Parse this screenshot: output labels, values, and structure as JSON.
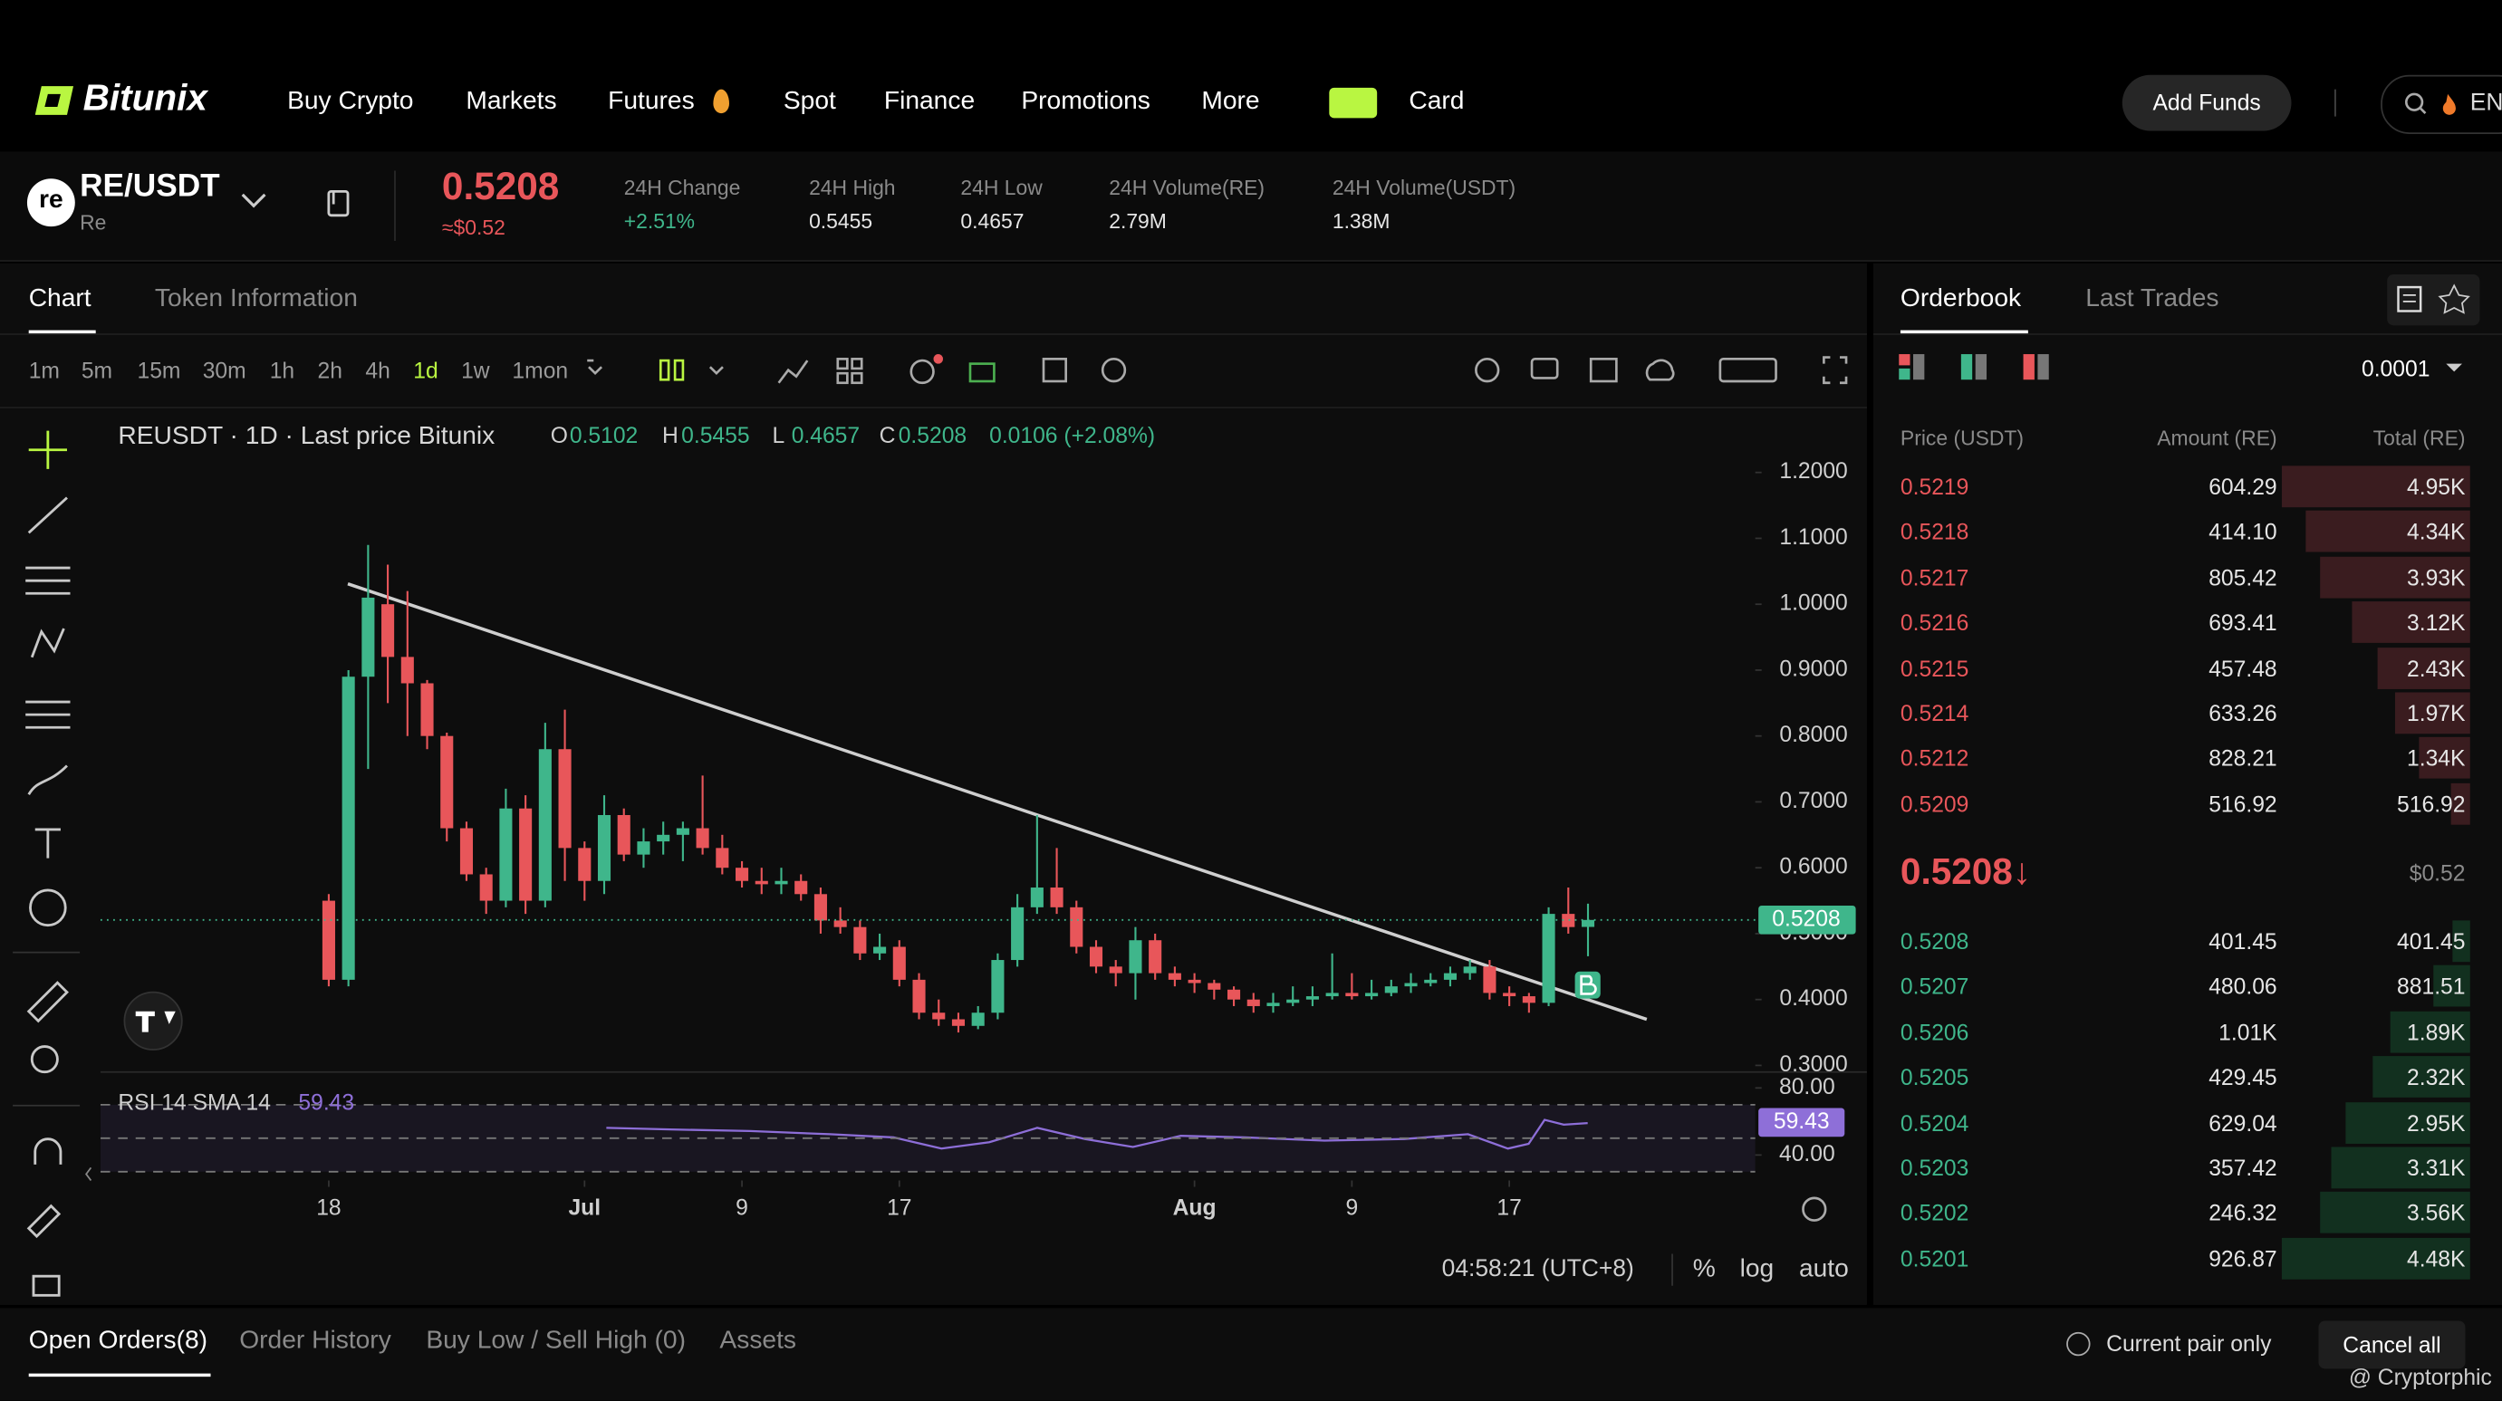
{
  "nav": {
    "brand": "Bitunix",
    "items": [
      "Buy Crypto",
      "Markets",
      "Futures",
      "Spot",
      "Finance",
      "Promotions",
      "More",
      "Card"
    ],
    "add_funds": "Add Funds",
    "lang": "EN"
  },
  "ticker": {
    "icon": "re",
    "pair": "RE/USDT",
    "name": "Re",
    "price": "0.5208",
    "price_usd": "≈$0.52",
    "stats": [
      {
        "label": "24H Change",
        "value": "+2.51%"
      },
      {
        "label": "24H High",
        "value": "0.5455"
      },
      {
        "label": "24H Low",
        "value": "0.4657"
      },
      {
        "label": "24H Volume(RE)",
        "value": "2.79M"
      },
      {
        "label": "24H Volume(USDT)",
        "value": "1.38M"
      }
    ]
  },
  "chart_tabs": [
    "Chart",
    "Token Information"
  ],
  "intervals": [
    "1m",
    "5m",
    "15m",
    "30m",
    "1h",
    "2h",
    "4h",
    "1d",
    "1w",
    "1mon"
  ],
  "active_interval": "1d",
  "chart_data": {
    "type": "candlestick",
    "title": "REUSDT · 1D · Last price Bitunix",
    "ohlc_keys": [
      "O",
      "H",
      "L",
      "C"
    ],
    "change": "0.0106 (+2.08%)",
    "up_color": "#3fb68b",
    "down_color": "#e8565a",
    "candles": [
      {
        "o": 0.55,
        "h": 0.56,
        "l": 0.42,
        "c": 0.43
      },
      {
        "o": 0.43,
        "h": 0.9,
        "l": 0.42,
        "c": 0.89
      },
      {
        "o": 0.89,
        "h": 1.09,
        "l": 0.75,
        "c": 1.01
      },
      {
        "o": 1.0,
        "h": 1.06,
        "l": 0.85,
        "c": 0.92
      },
      {
        "o": 0.92,
        "h": 1.02,
        "l": 0.8,
        "c": 0.88
      },
      {
        "o": 0.88,
        "h": 0.885,
        "l": 0.78,
        "c": 0.8
      },
      {
        "o": 0.8,
        "h": 0.805,
        "l": 0.64,
        "c": 0.66
      },
      {
        "o": 0.66,
        "h": 0.67,
        "l": 0.58,
        "c": 0.59
      },
      {
        "o": 0.59,
        "h": 0.6,
        "l": 0.53,
        "c": 0.55
      },
      {
        "o": 0.55,
        "h": 0.72,
        "l": 0.54,
        "c": 0.69
      },
      {
        "o": 0.69,
        "h": 0.71,
        "l": 0.53,
        "c": 0.55
      },
      {
        "o": 0.55,
        "h": 0.82,
        "l": 0.54,
        "c": 0.78
      },
      {
        "o": 0.78,
        "h": 0.84,
        "l": 0.58,
        "c": 0.63
      },
      {
        "o": 0.63,
        "h": 0.64,
        "l": 0.55,
        "c": 0.58
      },
      {
        "o": 0.58,
        "h": 0.71,
        "l": 0.56,
        "c": 0.68
      },
      {
        "o": 0.68,
        "h": 0.69,
        "l": 0.61,
        "c": 0.62
      },
      {
        "o": 0.62,
        "h": 0.66,
        "l": 0.6,
        "c": 0.64
      },
      {
        "o": 0.64,
        "h": 0.67,
        "l": 0.62,
        "c": 0.65
      },
      {
        "o": 0.65,
        "h": 0.67,
        "l": 0.61,
        "c": 0.66
      },
      {
        "o": 0.66,
        "h": 0.74,
        "l": 0.62,
        "c": 0.63
      },
      {
        "o": 0.63,
        "h": 0.65,
        "l": 0.59,
        "c": 0.6
      },
      {
        "o": 0.6,
        "h": 0.61,
        "l": 0.57,
        "c": 0.58
      },
      {
        "o": 0.58,
        "h": 0.6,
        "l": 0.56,
        "c": 0.575
      },
      {
        "o": 0.575,
        "h": 0.6,
        "l": 0.56,
        "c": 0.58
      },
      {
        "o": 0.58,
        "h": 0.59,
        "l": 0.55,
        "c": 0.56
      },
      {
        "o": 0.56,
        "h": 0.57,
        "l": 0.5,
        "c": 0.52
      },
      {
        "o": 0.52,
        "h": 0.54,
        "l": 0.5,
        "c": 0.51
      },
      {
        "o": 0.51,
        "h": 0.52,
        "l": 0.46,
        "c": 0.47
      },
      {
        "o": 0.47,
        "h": 0.5,
        "l": 0.46,
        "c": 0.48
      },
      {
        "o": 0.48,
        "h": 0.49,
        "l": 0.42,
        "c": 0.43
      },
      {
        "o": 0.43,
        "h": 0.44,
        "l": 0.37,
        "c": 0.38
      },
      {
        "o": 0.38,
        "h": 0.4,
        "l": 0.36,
        "c": 0.37
      },
      {
        "o": 0.37,
        "h": 0.38,
        "l": 0.35,
        "c": 0.36
      },
      {
        "o": 0.36,
        "h": 0.39,
        "l": 0.355,
        "c": 0.38
      },
      {
        "o": 0.38,
        "h": 0.47,
        "l": 0.37,
        "c": 0.46
      },
      {
        "o": 0.46,
        "h": 0.56,
        "l": 0.45,
        "c": 0.54
      },
      {
        "o": 0.54,
        "h": 0.68,
        "l": 0.53,
        "c": 0.57
      },
      {
        "o": 0.57,
        "h": 0.63,
        "l": 0.53,
        "c": 0.54
      },
      {
        "o": 0.54,
        "h": 0.55,
        "l": 0.47,
        "c": 0.48
      },
      {
        "o": 0.48,
        "h": 0.49,
        "l": 0.44,
        "c": 0.45
      },
      {
        "o": 0.45,
        "h": 0.46,
        "l": 0.42,
        "c": 0.44
      },
      {
        "o": 0.44,
        "h": 0.51,
        "l": 0.4,
        "c": 0.49
      },
      {
        "o": 0.49,
        "h": 0.5,
        "l": 0.43,
        "c": 0.44
      },
      {
        "o": 0.44,
        "h": 0.45,
        "l": 0.42,
        "c": 0.43
      },
      {
        "o": 0.43,
        "h": 0.44,
        "l": 0.41,
        "c": 0.425
      },
      {
        "o": 0.425,
        "h": 0.43,
        "l": 0.4,
        "c": 0.415
      },
      {
        "o": 0.415,
        "h": 0.42,
        "l": 0.39,
        "c": 0.4
      },
      {
        "o": 0.4,
        "h": 0.41,
        "l": 0.38,
        "c": 0.39
      },
      {
        "o": 0.39,
        "h": 0.41,
        "l": 0.38,
        "c": 0.395
      },
      {
        "o": 0.395,
        "h": 0.42,
        "l": 0.39,
        "c": 0.4
      },
      {
        "o": 0.4,
        "h": 0.42,
        "l": 0.39,
        "c": 0.405
      },
      {
        "o": 0.405,
        "h": 0.47,
        "l": 0.4,
        "c": 0.41
      },
      {
        "o": 0.41,
        "h": 0.44,
        "l": 0.4,
        "c": 0.405
      },
      {
        "o": 0.405,
        "h": 0.43,
        "l": 0.4,
        "c": 0.41
      },
      {
        "o": 0.41,
        "h": 0.43,
        "l": 0.405,
        "c": 0.42
      },
      {
        "o": 0.42,
        "h": 0.44,
        "l": 0.41,
        "c": 0.425
      },
      {
        "o": 0.425,
        "h": 0.44,
        "l": 0.42,
        "c": 0.43
      },
      {
        "o": 0.43,
        "h": 0.45,
        "l": 0.42,
        "c": 0.44
      },
      {
        "o": 0.44,
        "h": 0.46,
        "l": 0.43,
        "c": 0.45
      },
      {
        "o": 0.45,
        "h": 0.46,
        "l": 0.4,
        "c": 0.41
      },
      {
        "o": 0.41,
        "h": 0.42,
        "l": 0.39,
        "c": 0.405
      },
      {
        "o": 0.405,
        "h": 0.41,
        "l": 0.38,
        "c": 0.395
      },
      {
        "o": 0.395,
        "h": 0.54,
        "l": 0.39,
        "c": 0.53
      },
      {
        "o": 0.53,
        "h": 0.57,
        "l": 0.5,
        "c": 0.51
      },
      {
        "o": 0.5102,
        "h": 0.5455,
        "l": 0.4657,
        "c": 0.5208
      }
    ],
    "xlim": [
      -11.6,
      72.5
    ],
    "xticks": [
      {
        "value": 0,
        "label": "18"
      },
      {
        "value": 13,
        "label": "Jul"
      },
      {
        "value": 21,
        "label": "9"
      },
      {
        "value": 29,
        "label": "17"
      },
      {
        "value": 44,
        "label": "Aug"
      },
      {
        "value": 52,
        "label": "9"
      },
      {
        "value": 60,
        "label": "17"
      }
    ],
    "ylim": [
      0.29,
      1.29
    ],
    "yticks": [
      {
        "value": 1.2,
        "label": "1.2000"
      },
      {
        "value": 1.1,
        "label": "1.1000"
      },
      {
        "value": 1.0,
        "label": "1.0000"
      },
      {
        "value": 0.9,
        "label": "0.9000"
      },
      {
        "value": 0.8,
        "label": "0.8000"
      },
      {
        "value": 0.7,
        "label": "0.7000"
      },
      {
        "value": 0.6,
        "label": "0.6000"
      },
      {
        "value": 0.5,
        "label": "0.5000"
      },
      {
        "value": 0.4,
        "label": "0.4000"
      },
      {
        "value": 0.3,
        "label": "0.3000"
      }
    ],
    "rsi": {
      "label": "RSI 14 SMA 14",
      "value": 59.43,
      "color": "#8e6fd8",
      "ylim": [
        24.8,
        87.6
      ],
      "yticks": [
        {
          "value": 80,
          "label": "80.00"
        },
        {
          "value": 40,
          "label": "40.00"
        }
      ]
    },
    "time": "04:58:21 (UTC+8)",
    "scale_options": [
      "%",
      "log",
      "auto"
    ]
  },
  "orderbook": {
    "tabs": [
      "Orderbook",
      "Last Trades"
    ],
    "precision": "0.0001",
    "headers": [
      "Price (USDT)",
      "Amount (RE)",
      "Total (RE)"
    ],
    "asks": [
      [
        "0.5219",
        "604.29",
        "4.95K"
      ],
      [
        "0.5218",
        "414.10",
        "4.34K"
      ],
      [
        "0.5217",
        "805.42",
        "3.93K"
      ],
      [
        "0.5216",
        "693.41",
        "3.12K"
      ],
      [
        "0.5215",
        "457.48",
        "2.43K"
      ],
      [
        "0.5214",
        "633.26",
        "1.97K"
      ],
      [
        "0.5212",
        "828.21",
        "1.34K"
      ],
      [
        "0.5209",
        "516.92",
        "516.92"
      ]
    ],
    "mid_price": "0.5208↓",
    "mid_usd": "$0.52",
    "bids": [
      [
        "0.5208",
        "401.45",
        "401.45"
      ],
      [
        "0.5207",
        "480.06",
        "881.51"
      ],
      [
        "0.5206",
        "1.01K",
        "1.89K"
      ],
      [
        "0.5205",
        "429.45",
        "2.32K"
      ],
      [
        "0.5204",
        "629.04",
        "2.95K"
      ],
      [
        "0.5203",
        "357.42",
        "3.31K"
      ],
      [
        "0.5202",
        "246.32",
        "3.56K"
      ],
      [
        "0.5201",
        "926.87",
        "4.48K"
      ]
    ]
  },
  "bottom": {
    "tabs": [
      "Open Orders(8)",
      "Order History",
      "Buy Low / Sell High (0)",
      "Assets"
    ],
    "current_pair": "Current pair only",
    "cancel_all": "Cancel all",
    "watermark": "@ Cryptorphic"
  }
}
